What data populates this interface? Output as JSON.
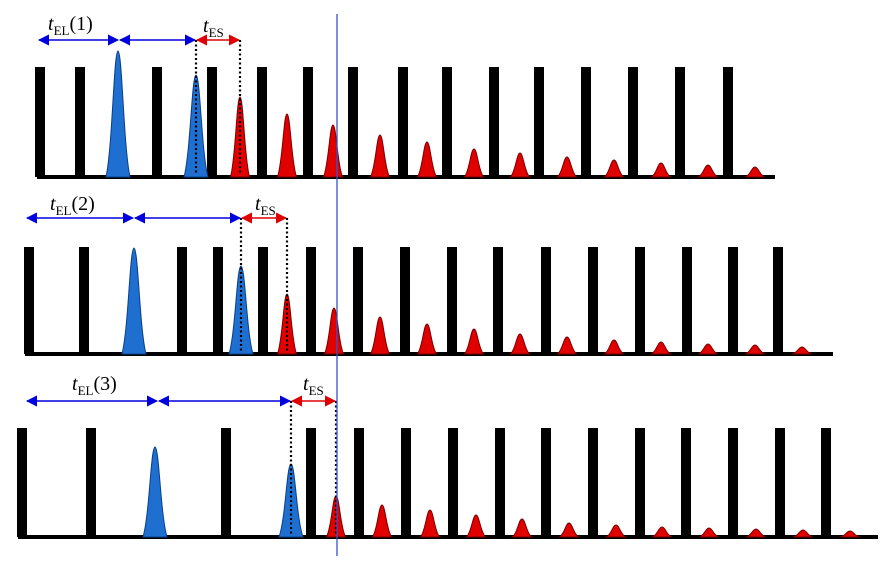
{
  "colors": {
    "pulse_bar": "#000000",
    "early_peak": "#1f6fd1",
    "late_peak": "#e00000",
    "delay_arrow": "#0000dd",
    "spacing_arrow": "#e00000",
    "reference_line": "#3355cc"
  },
  "rows": [
    {
      "t_label": "t",
      "el_sub": "EL",
      "el_idx": "(1)",
      "es_t": "t",
      "es_sub": "ES"
    },
    {
      "t_label": "t",
      "el_sub": "EL",
      "el_idx": "(2)",
      "es_t": "t",
      "es_sub": "ES"
    },
    {
      "t_label": "t",
      "el_sub": "EL",
      "el_idx": "(3)",
      "es_t": "t",
      "es_sub": "ES"
    }
  ]
}
